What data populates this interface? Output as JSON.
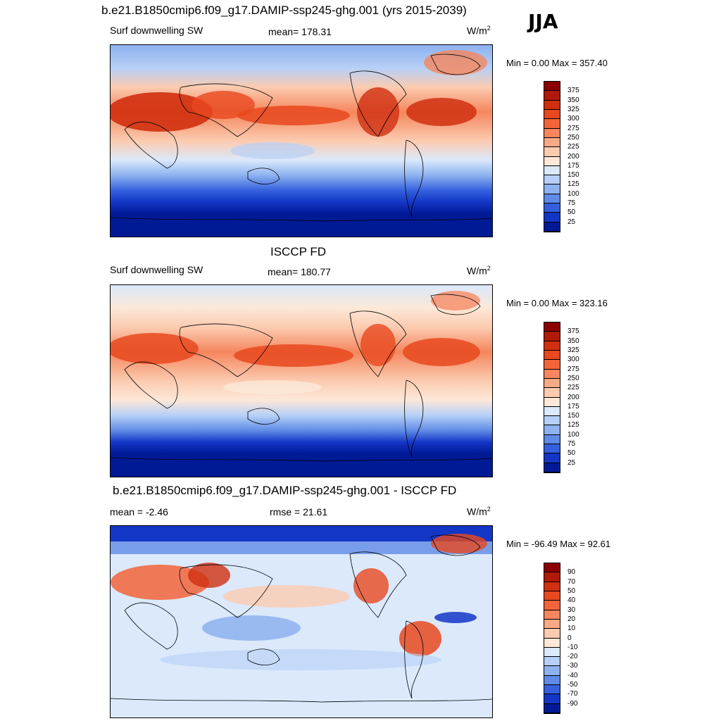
{
  "figure": {
    "main_title": "b.e21.B1850cmip6.f09_g17.DAMIP-ssp245-ghg.001 (yrs 2015-2039)",
    "season": "JJA"
  },
  "panels": [
    {
      "id": "model",
      "title": "",
      "left_label": "Surf downwelling SW",
      "center_label": "mean= 178.31",
      "units": "W/m",
      "units_sup": "2",
      "minmax": "Min =   0.00 Max = 357.40",
      "palette": "sequential",
      "map_icon": "world-map-contour-icon"
    },
    {
      "id": "obs",
      "title": "ISCCP FD",
      "left_label": "Surf downwelling SW",
      "center_label": "mean= 180.77",
      "units": "W/m",
      "units_sup": "2",
      "minmax": "Min =   0.00 Max = 323.16",
      "palette": "sequential",
      "map_icon": "world-map-contour-icon"
    },
    {
      "id": "diff",
      "title": "b.e21.B1850cmip6.f09_g17.DAMIP-ssp245-ghg.001 - ISCCP FD",
      "left_label": "mean =  -2.46",
      "center_label": "rmse =  21.61",
      "units": "W/m",
      "units_sup": "2",
      "minmax": "Min = -96.49 Max =  92.61",
      "palette": "diverging",
      "map_icon": "world-map-contour-icon"
    }
  ],
  "colorbars": {
    "sequential": {
      "ticks": [
        "375",
        "350",
        "325",
        "300",
        "275",
        "250",
        "225",
        "200",
        "175",
        "150",
        "125",
        "100",
        "75",
        "50",
        "25"
      ],
      "colors": [
        "#8b0000",
        "#b01a08",
        "#d03010",
        "#e8491f",
        "#f2643a",
        "#f5865d",
        "#f8a985",
        "#fbcbb0",
        "#fde8d8",
        "#dbe9fb",
        "#b6d0f7",
        "#8db2ef",
        "#5f8ae6",
        "#3560dd",
        "#1436c6",
        "#001a96"
      ]
    },
    "diverging": {
      "ticks": [
        "90",
        "70",
        "50",
        "40",
        "30",
        "20",
        "10",
        "0",
        "-10",
        "-20",
        "-30",
        "-40",
        "-50",
        "-70",
        "-90"
      ],
      "colors": [
        "#8b0000",
        "#b01a08",
        "#d03010",
        "#e8491f",
        "#f2643a",
        "#f5865d",
        "#f8a985",
        "#fbcbb0",
        "#fde8d8",
        "#dbe9fb",
        "#b6d0f7",
        "#8db2ef",
        "#5f8ae6",
        "#3560dd",
        "#1436c6",
        "#001a96"
      ]
    }
  }
}
